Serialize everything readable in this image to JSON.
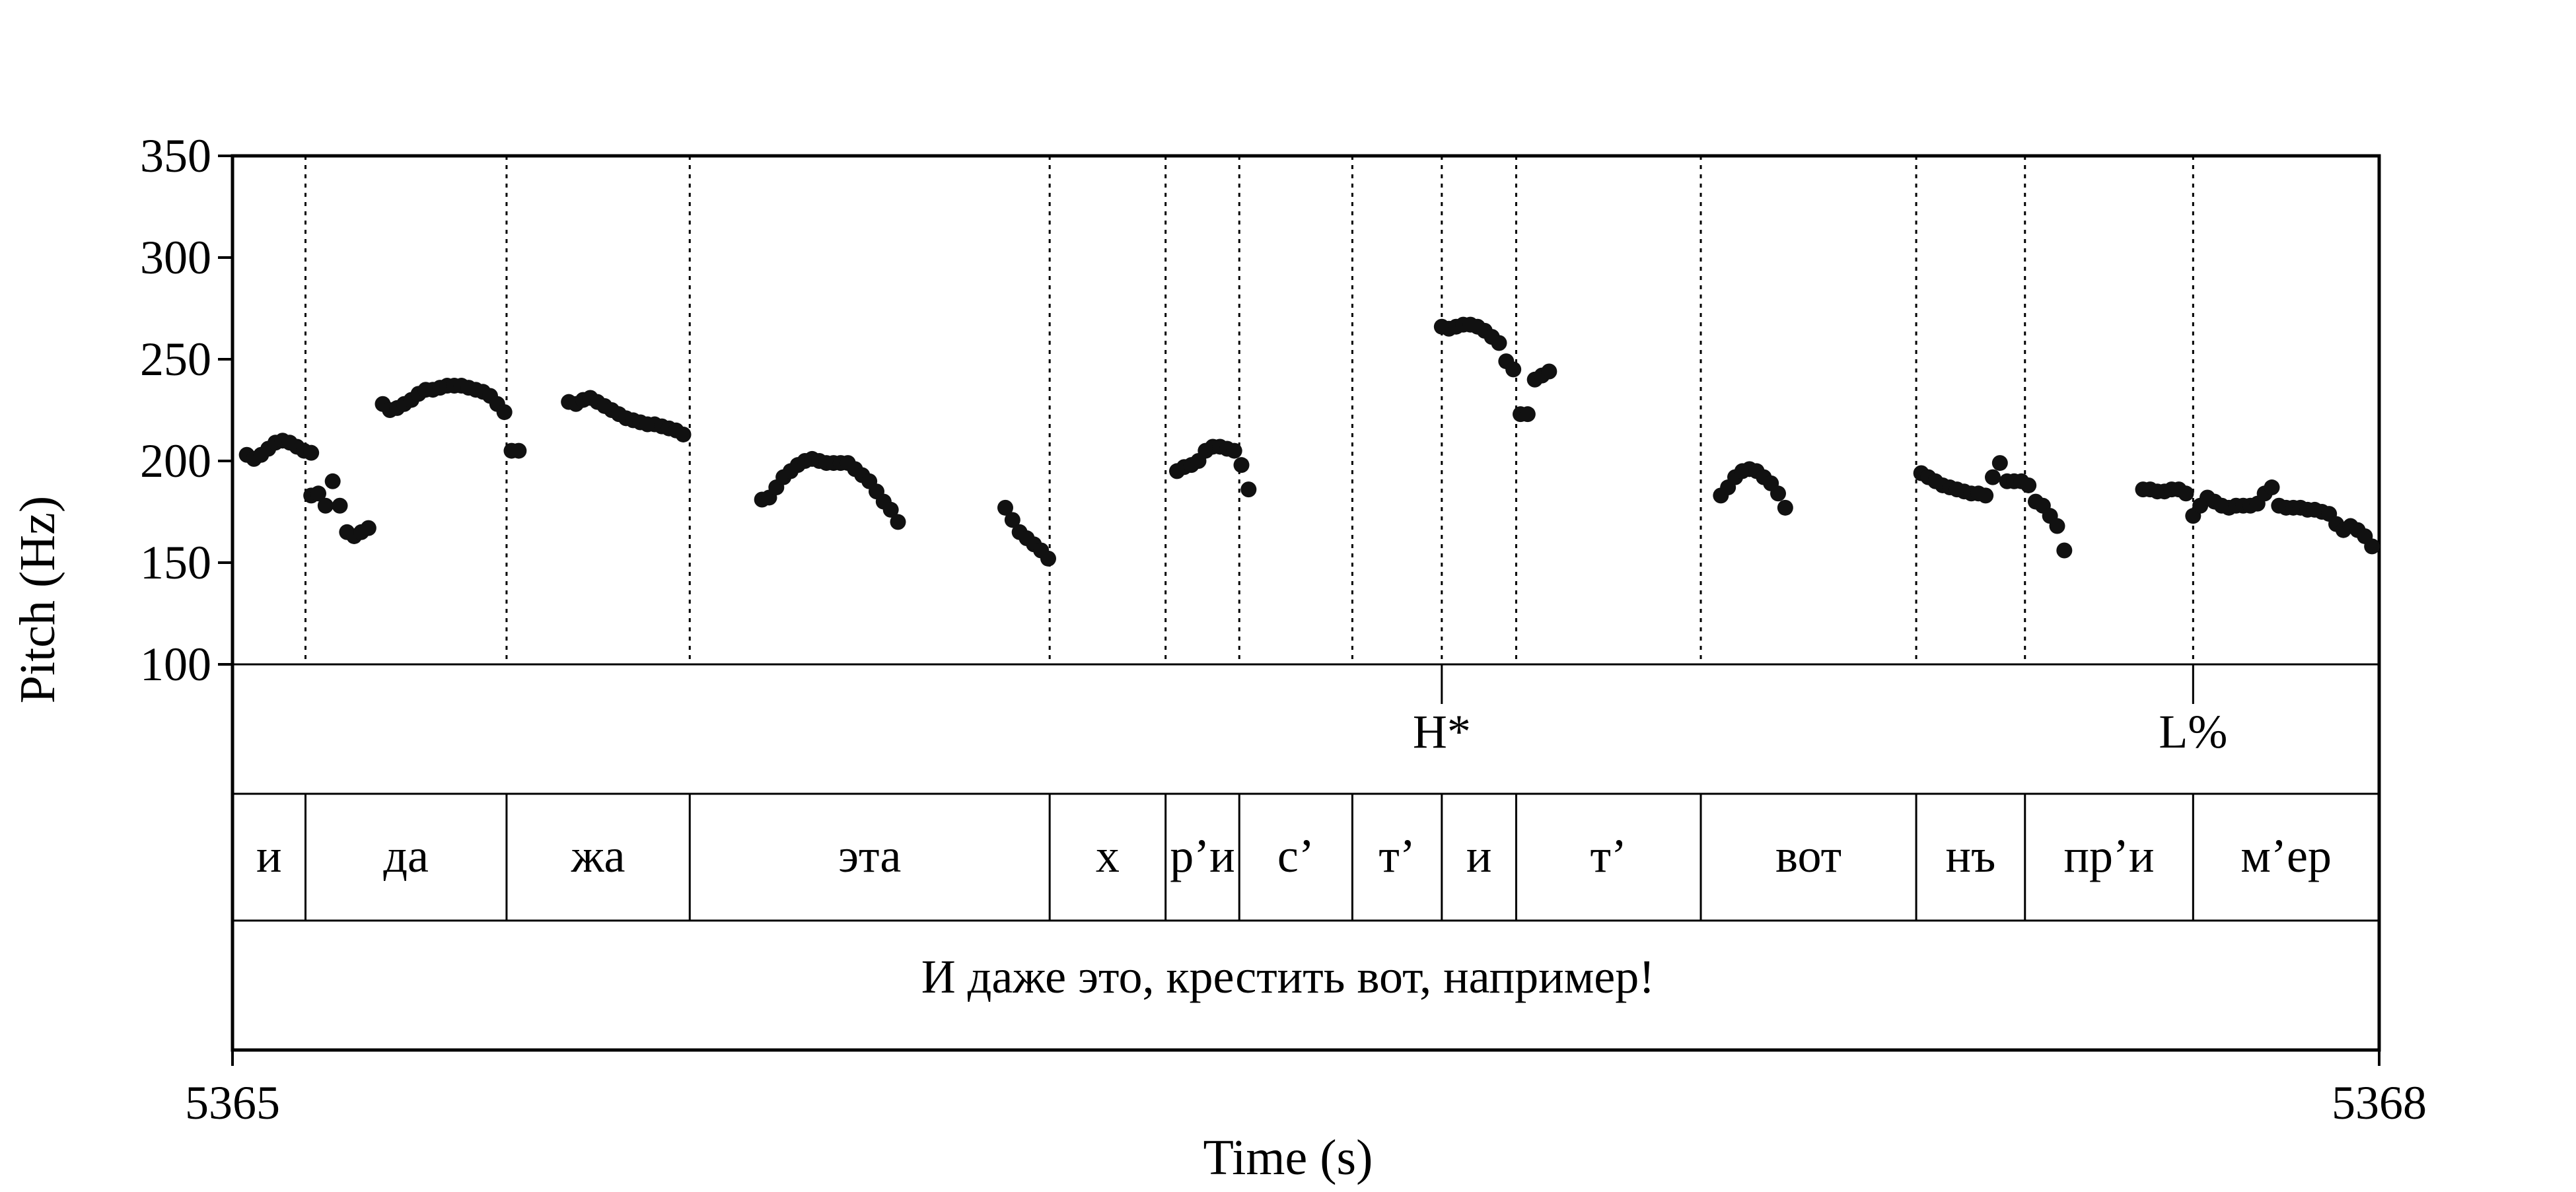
{
  "chart_data": {
    "type": "scatter",
    "title": "",
    "xlabel": "Time (s)",
    "ylabel": "Pitch (Hz)",
    "xlim": [
      5365,
      5368
    ],
    "ylim": [
      100,
      350
    ],
    "xticks": [
      "5365",
      "5368"
    ],
    "yticks": [
      "100",
      "150",
      "200",
      "250",
      "300",
      "350"
    ],
    "grid": false,
    "marker_color": "#111111",
    "boundaries": [
      5365.102,
      5365.383,
      5365.639,
      5366.142,
      5366.304,
      5366.407,
      5366.565,
      5366.69,
      5366.794,
      5367.052,
      5367.353,
      5367.505,
      5367.74
    ],
    "tones": [
      {
        "label": "H*",
        "time": 5366.69
      },
      {
        "label": "L%",
        "time": 5367.74
      }
    ],
    "segments": [
      {
        "label": "и",
        "start": 5365.0,
        "end": 5365.102
      },
      {
        "label": "да",
        "start": 5365.102,
        "end": 5365.383
      },
      {
        "label": "жа",
        "start": 5365.383,
        "end": 5365.639
      },
      {
        "label": "эта",
        "start": 5365.639,
        "end": 5366.142
      },
      {
        "label": "х",
        "start": 5366.142,
        "end": 5366.304
      },
      {
        "label": "р’и",
        "start": 5366.304,
        "end": 5366.407
      },
      {
        "label": "с’",
        "start": 5366.407,
        "end": 5366.565
      },
      {
        "label": "т’",
        "start": 5366.565,
        "end": 5366.69
      },
      {
        "label": "и",
        "start": 5366.69,
        "end": 5366.794
      },
      {
        "label": "т’",
        "start": 5366.794,
        "end": 5367.052
      },
      {
        "label": "вот",
        "start": 5367.052,
        "end": 5367.353
      },
      {
        "label": "нъ",
        "start": 5367.353,
        "end": 5367.505
      },
      {
        "label": "пр’и",
        "start": 5367.505,
        "end": 5367.74
      },
      {
        "label": "м’ер",
        "start": 5367.74,
        "end": 5368.0
      }
    ],
    "sentence": "И даже это, крестить вот, например!",
    "pitch_points": [
      [
        5365.02,
        203
      ],
      [
        5365.03,
        201
      ],
      [
        5365.04,
        203
      ],
      [
        5365.05,
        206
      ],
      [
        5365.06,
        209
      ],
      [
        5365.07,
        210
      ],
      [
        5365.08,
        209
      ],
      [
        5365.09,
        207
      ],
      [
        5365.1,
        205
      ],
      [
        5365.11,
        204
      ],
      [
        5365.11,
        183
      ],
      [
        5365.12,
        184
      ],
      [
        5365.13,
        178
      ],
      [
        5365.14,
        190
      ],
      [
        5365.15,
        178
      ],
      [
        5365.16,
        165
      ],
      [
        5365.17,
        163
      ],
      [
        5365.18,
        165
      ],
      [
        5365.19,
        167
      ],
      [
        5365.21,
        228
      ],
      [
        5365.22,
        225
      ],
      [
        5365.23,
        226
      ],
      [
        5365.24,
        228
      ],
      [
        5365.25,
        230
      ],
      [
        5365.26,
        233
      ],
      [
        5365.27,
        235
      ],
      [
        5365.28,
        235
      ],
      [
        5365.29,
        236
      ],
      [
        5365.3,
        237
      ],
      [
        5365.31,
        237
      ],
      [
        5365.32,
        237
      ],
      [
        5365.33,
        236
      ],
      [
        5365.34,
        235
      ],
      [
        5365.35,
        234
      ],
      [
        5365.36,
        232
      ],
      [
        5365.37,
        228
      ],
      [
        5365.38,
        224
      ],
      [
        5365.39,
        205
      ],
      [
        5365.4,
        205
      ],
      [
        5365.47,
        229
      ],
      [
        5365.48,
        228
      ],
      [
        5365.49,
        230
      ],
      [
        5365.5,
        231
      ],
      [
        5365.51,
        229
      ],
      [
        5365.52,
        227
      ],
      [
        5365.53,
        225
      ],
      [
        5365.54,
        223
      ],
      [
        5365.55,
        221
      ],
      [
        5365.56,
        220
      ],
      [
        5365.57,
        219
      ],
      [
        5365.58,
        218
      ],
      [
        5365.59,
        218
      ],
      [
        5365.6,
        217
      ],
      [
        5365.61,
        216
      ],
      [
        5365.62,
        215
      ],
      [
        5365.63,
        213
      ],
      [
        5365.74,
        181
      ],
      [
        5365.75,
        182
      ],
      [
        5365.76,
        187
      ],
      [
        5365.77,
        192
      ],
      [
        5365.78,
        195
      ],
      [
        5365.79,
        198
      ],
      [
        5365.8,
        200
      ],
      [
        5365.81,
        201
      ],
      [
        5365.82,
        200
      ],
      [
        5365.83,
        199
      ],
      [
        5365.84,
        199
      ],
      [
        5365.85,
        199
      ],
      [
        5365.86,
        199
      ],
      [
        5365.87,
        196
      ],
      [
        5365.88,
        193
      ],
      [
        5365.89,
        190
      ],
      [
        5365.9,
        185
      ],
      [
        5365.91,
        180
      ],
      [
        5365.92,
        176
      ],
      [
        5365.93,
        170
      ],
      [
        5366.08,
        177
      ],
      [
        5366.09,
        171
      ],
      [
        5366.1,
        165
      ],
      [
        5366.11,
        162
      ],
      [
        5366.12,
        159
      ],
      [
        5366.13,
        156
      ],
      [
        5366.14,
        152
      ],
      [
        5366.32,
        195
      ],
      [
        5366.33,
        197
      ],
      [
        5366.34,
        198
      ],
      [
        5366.35,
        200
      ],
      [
        5366.36,
        205
      ],
      [
        5366.37,
        207
      ],
      [
        5366.38,
        207
      ],
      [
        5366.39,
        206
      ],
      [
        5366.4,
        205
      ],
      [
        5366.41,
        198
      ],
      [
        5366.42,
        186
      ],
      [
        5366.69,
        266
      ],
      [
        5366.7,
        265
      ],
      [
        5366.71,
        266
      ],
      [
        5366.72,
        267
      ],
      [
        5366.73,
        267
      ],
      [
        5366.74,
        266
      ],
      [
        5366.75,
        264
      ],
      [
        5366.76,
        261
      ],
      [
        5366.77,
        258
      ],
      [
        5366.78,
        249
      ],
      [
        5366.79,
        245
      ],
      [
        5366.8,
        223
      ],
      [
        5366.81,
        223
      ],
      [
        5366.82,
        240
      ],
      [
        5366.83,
        242
      ],
      [
        5366.84,
        244
      ],
      [
        5367.08,
        183
      ],
      [
        5367.09,
        187
      ],
      [
        5367.1,
        192
      ],
      [
        5367.11,
        195
      ],
      [
        5367.12,
        196
      ],
      [
        5367.13,
        195
      ],
      [
        5367.14,
        192
      ],
      [
        5367.15,
        189
      ],
      [
        5367.16,
        184
      ],
      [
        5367.17,
        177
      ],
      [
        5367.36,
        194
      ],
      [
        5367.37,
        192
      ],
      [
        5367.38,
        190
      ],
      [
        5367.39,
        188
      ],
      [
        5367.4,
        187
      ],
      [
        5367.41,
        186
      ],
      [
        5367.42,
        185
      ],
      [
        5367.43,
        184
      ],
      [
        5367.44,
        184
      ],
      [
        5367.45,
        183
      ],
      [
        5367.46,
        192
      ],
      [
        5367.47,
        199
      ],
      [
        5367.48,
        190
      ],
      [
        5367.49,
        190
      ],
      [
        5367.5,
        190
      ],
      [
        5367.51,
        188
      ],
      [
        5367.52,
        180
      ],
      [
        5367.53,
        178
      ],
      [
        5367.54,
        173
      ],
      [
        5367.55,
        168
      ],
      [
        5367.56,
        156
      ],
      [
        5367.67,
        186
      ],
      [
        5367.68,
        186
      ],
      [
        5367.69,
        185
      ],
      [
        5367.7,
        185
      ],
      [
        5367.71,
        186
      ],
      [
        5367.72,
        186
      ],
      [
        5367.73,
        184
      ],
      [
        5367.74,
        173
      ],
      [
        5367.75,
        178
      ],
      [
        5367.76,
        182
      ],
      [
        5367.77,
        180
      ],
      [
        5367.78,
        178
      ],
      [
        5367.79,
        177
      ],
      [
        5367.8,
        178
      ],
      [
        5367.81,
        178
      ],
      [
        5367.82,
        178
      ],
      [
        5367.83,
        179
      ],
      [
        5367.84,
        184
      ],
      [
        5367.85,
        187
      ],
      [
        5367.86,
        178
      ],
      [
        5367.87,
        177
      ],
      [
        5367.88,
        177
      ],
      [
        5367.89,
        177
      ],
      [
        5367.9,
        176
      ],
      [
        5367.91,
        176
      ],
      [
        5367.92,
        175
      ],
      [
        5367.93,
        174
      ],
      [
        5367.94,
        169
      ],
      [
        5367.95,
        166
      ],
      [
        5367.96,
        168
      ],
      [
        5367.97,
        166
      ],
      [
        5367.98,
        163
      ],
      [
        5367.99,
        158
      ]
    ]
  }
}
